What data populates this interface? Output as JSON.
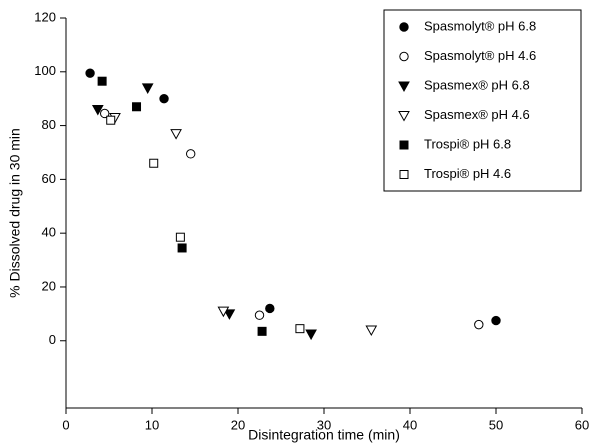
{
  "chart_data": {
    "type": "scatter",
    "xlabel": "Disintegration time (min)",
    "ylabel": "% Dissolved drug in 30 min",
    "xlim": [
      0,
      60
    ],
    "xticks": [
      0,
      10,
      20,
      30,
      40,
      50,
      60
    ],
    "ylim": [
      -25,
      120
    ],
    "yticks": [
      0,
      20,
      40,
      60,
      80,
      100,
      120
    ],
    "legend": "upper right",
    "series": [
      {
        "name": "Spasmolyt® pH 6.8",
        "color": "#000000",
        "marker": "circle",
        "filled": true,
        "x": [
          2.8,
          11.4,
          23.7,
          50
        ],
        "values": [
          99.5,
          90,
          12,
          7.5
        ]
      },
      {
        "name": "Spasmolyt® pH 4.6",
        "color": "#000000",
        "marker": "circle",
        "filled": false,
        "x": [
          4.5,
          14.5,
          22.5,
          48
        ],
        "values": [
          84.5,
          69.5,
          9.5,
          6
        ]
      },
      {
        "name": "Spasmex® pH 6.8",
        "color": "#000000",
        "marker": "triangle-down",
        "filled": true,
        "x": [
          3.7,
          9.5,
          19,
          28.5
        ],
        "values": [
          86,
          94,
          10,
          2.5
        ]
      },
      {
        "name": "Spasmex® pH 4.6",
        "color": "#000000",
        "marker": "triangle-down",
        "filled": false,
        "x": [
          5.7,
          12.8,
          18.3,
          35.5
        ],
        "values": [
          83,
          77,
          11,
          4
        ]
      },
      {
        "name": "Trospi® pH 6.8",
        "color": "#000000",
        "marker": "square",
        "filled": true,
        "x": [
          4.2,
          8.2,
          13.5,
          22.8
        ],
        "values": [
          96.5,
          87,
          34.5,
          3.5
        ]
      },
      {
        "name": "Trospi® pH 4.6",
        "color": "#000000",
        "marker": "square",
        "filled": false,
        "x": [
          5.2,
          10.2,
          13.3,
          27.2
        ],
        "values": [
          82,
          66,
          38.5,
          4.5
        ]
      }
    ]
  }
}
